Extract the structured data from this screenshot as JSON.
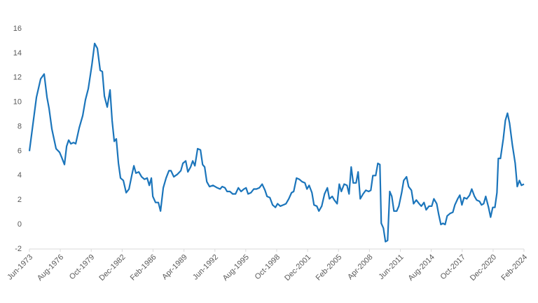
{
  "chart_data": {
    "type": "line",
    "color": "#1b75bb",
    "x": [
      1973.42,
      1974.14,
      1974.57,
      1974.93,
      1975.22,
      1975.43,
      1975.72,
      1976.15,
      1976.51,
      1976.72,
      1977.01,
      1977.23,
      1977.44,
      1977.66,
      1977.94,
      1978.16,
      1978.52,
      1978.88,
      1979.16,
      1979.45,
      1979.81,
      1980.1,
      1980.38,
      1980.67,
      1980.89,
      1981.1,
      1981.39,
      1981.68,
      1981.89,
      1982.11,
      1982.32,
      1982.54,
      1982.75,
      1983.04,
      1983.33,
      1983.62,
      1983.9,
      1984.12,
      1984.33,
      1984.62,
      1984.91,
      1985.2,
      1985.48,
      1985.7,
      1985.91,
      1986.06,
      1986.34,
      1986.63,
      1986.85,
      1987.13,
      1987.42,
      1987.71,
      1987.92,
      1988.21,
      1988.57,
      1988.93,
      1989.14,
      1989.43,
      1989.65,
      1989.93,
      1990.15,
      1990.37,
      1990.65,
      1990.94,
      1991.16,
      1991.37,
      1991.59,
      1991.87,
      1992.23,
      1992.66,
      1992.95,
      1993.17,
      1993.45,
      1993.67,
      1993.96,
      1994.24,
      1994.53,
      1994.82,
      1995.1,
      1995.39,
      1995.61,
      1995.82,
      1996.11,
      1996.4,
      1996.68,
      1996.97,
      1997.26,
      1997.55,
      1997.76,
      1998.05,
      1998.33,
      1998.62,
      1998.84,
      1999.12,
      1999.41,
      1999.7,
      1999.99,
      2000.27,
      2000.49,
      2000.78,
      2001.06,
      2001.35,
      2001.64,
      2001.85,
      2002.07,
      2002.36,
      2002.57,
      2002.86,
      2003.07,
      2003.36,
      2003.65,
      2003.94,
      2004.15,
      2004.44,
      2004.65,
      2004.94,
      2005.16,
      2005.37,
      2005.66,
      2005.95,
      2006.16,
      2006.38,
      2006.59,
      2006.88,
      2007.09,
      2007.31,
      2007.6,
      2007.88,
      2008.17,
      2008.39,
      2008.6,
      2008.89,
      2009.11,
      2009.32,
      2009.46,
      2009.68,
      2009.89,
      2010.11,
      2010.33,
      2010.54,
      2010.76,
      2011.04,
      2011.26,
      2011.55,
      2011.76,
      2012.05,
      2012.26,
      2012.55,
      2012.77,
      2013.05,
      2013.34,
      2013.56,
      2013.84,
      2014.06,
      2014.35,
      2014.63,
      2014.85,
      2015.14,
      2015.35,
      2015.57,
      2015.78,
      2016.0,
      2016.21,
      2016.5,
      2016.79,
      2017.0,
      2017.29,
      2017.51,
      2017.72,
      2017.94,
      2018.22,
      2018.51,
      2018.73,
      2019.01,
      2019.23,
      2019.52,
      2019.73,
      2019.95,
      2020.16,
      2020.45,
      2020.66,
      2020.88,
      2021.1,
      2021.31,
      2021.45,
      2021.67,
      2021.96,
      2022.17,
      2022.39,
      2022.6,
      2022.89,
      2023.18,
      2023.39,
      2023.61,
      2023.82,
      2024.08
    ],
    "values": [
      6.0,
      10.4,
      11.9,
      12.3,
      10.4,
      9.5,
      7.8,
      6.2,
      5.9,
      5.5,
      4.9,
      6.4,
      6.9,
      6.6,
      6.7,
      6.6,
      7.9,
      8.9,
      10.2,
      11.1,
      13.0,
      14.8,
      14.4,
      12.6,
      12.5,
      10.5,
      9.6,
      11.0,
      8.5,
      6.8,
      7.0,
      5.0,
      3.8,
      3.6,
      2.6,
      2.9,
      4.0,
      4.8,
      4.2,
      4.3,
      3.9,
      3.7,
      3.8,
      3.2,
      3.8,
      2.3,
      1.8,
      1.8,
      1.1,
      3.0,
      3.8,
      4.4,
      4.4,
      3.9,
      4.1,
      4.4,
      5.0,
      5.2,
      4.3,
      4.7,
      5.2,
      4.8,
      6.2,
      6.1,
      4.9,
      4.7,
      3.5,
      3.1,
      3.2,
      3.0,
      2.9,
      3.1,
      3.0,
      2.7,
      2.7,
      2.5,
      2.5,
      3.0,
      2.7,
      2.9,
      3.0,
      2.5,
      2.6,
      2.9,
      2.9,
      3.0,
      3.3,
      2.8,
      2.3,
      2.2,
      1.6,
      1.4,
      1.7,
      1.5,
      1.6,
      1.7,
      2.1,
      2.6,
      2.7,
      3.8,
      3.7,
      3.5,
      3.4,
      2.9,
      3.2,
      2.6,
      1.6,
      1.5,
      1.1,
      1.5,
      2.5,
      3.0,
      2.1,
      2.3,
      2.0,
      1.7,
      3.3,
      2.7,
      3.3,
      3.2,
      2.5,
      4.7,
      3.4,
      3.4,
      4.3,
      2.1,
      2.5,
      2.8,
      2.7,
      2.8,
      4.0,
      4.0,
      5.0,
      4.9,
      0.1,
      -0.3,
      -1.4,
      -1.3,
      2.7,
      2.3,
      1.1,
      1.1,
      1.5,
      2.6,
      3.6,
      3.9,
      3.1,
      2.8,
      1.7,
      2.0,
      1.7,
      1.5,
      1.8,
      1.2,
      1.5,
      1.5,
      2.1,
      1.7,
      0.8,
      0.0,
      0.1,
      0.0,
      0.7,
      0.9,
      1.0,
      1.6,
      2.1,
      2.4,
      1.6,
      2.2,
      2.1,
      2.4,
      2.9,
      2.3,
      2.0,
      1.9,
      1.6,
      1.7,
      2.3,
      1.4,
      0.6,
      1.4,
      1.4,
      2.6,
      5.4,
      5.4,
      7.0,
      8.5,
      9.1,
      8.3,
      6.5,
      5.0,
      3.1,
      3.6,
      3.2,
      3.3
    ],
    "xlim": [
      1973.42,
      2024.08
    ],
    "xticks": [
      {
        "value": 1973.42,
        "label": "Jun-1973"
      },
      {
        "value": 1976.58,
        "label": "Aug-1976"
      },
      {
        "value": 1979.75,
        "label": "Oct-1979"
      },
      {
        "value": 1982.92,
        "label": "Dec-1982"
      },
      {
        "value": 1986.08,
        "label": "Feb-1986"
      },
      {
        "value": 1989.25,
        "label": "Apr-1989"
      },
      {
        "value": 1992.42,
        "label": "Jun-1992"
      },
      {
        "value": 1995.58,
        "label": "Aug-1995"
      },
      {
        "value": 1998.75,
        "label": "Oct-1998"
      },
      {
        "value": 2001.92,
        "label": "Dec-2001"
      },
      {
        "value": 2005.08,
        "label": "Feb-2005"
      },
      {
        "value": 2008.25,
        "label": "Apr-2008"
      },
      {
        "value": 2011.42,
        "label": "Jun-2011"
      },
      {
        "value": 2014.58,
        "label": "Aug-2014"
      },
      {
        "value": 2017.75,
        "label": "Oct-2017"
      },
      {
        "value": 2020.92,
        "label": "Dec-2020"
      },
      {
        "value": 2024.08,
        "label": "Feb-2024"
      }
    ],
    "ylim": [
      -2,
      16
    ],
    "yticks": [
      -2,
      0,
      2,
      4,
      6,
      8,
      10,
      12,
      14,
      16
    ]
  }
}
